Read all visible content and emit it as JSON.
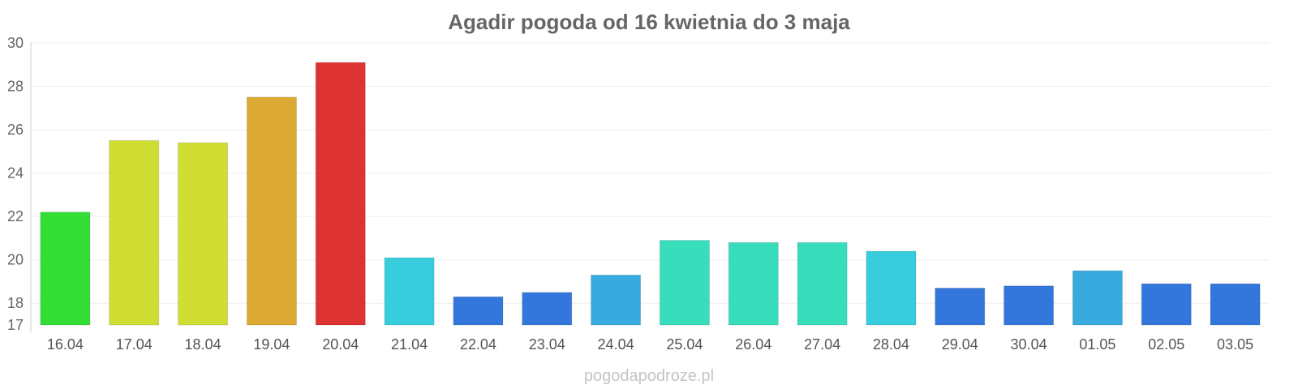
{
  "chart_data": {
    "type": "bar",
    "title": "Agadir pogoda od 16 kwietnia do 3 maja",
    "xlabel": "",
    "ylabel": "",
    "ylim": [
      17,
      30
    ],
    "yticks": [
      17,
      18,
      20,
      22,
      24,
      26,
      28,
      30
    ],
    "categories": [
      "16.04",
      "17.04",
      "18.04",
      "19.04",
      "20.04",
      "21.04",
      "22.04",
      "23.04",
      "24.04",
      "25.04",
      "26.04",
      "27.04",
      "28.04",
      "29.04",
      "30.04",
      "01.05",
      "02.05",
      "03.05"
    ],
    "values": [
      22.2,
      25.5,
      25.4,
      27.5,
      29.1,
      20.1,
      18.3,
      18.5,
      19.3,
      20.9,
      20.8,
      20.8,
      20.4,
      18.7,
      18.8,
      19.5,
      18.9,
      18.9
    ],
    "colors": [
      "#33dd33",
      "#d0dd33",
      "#d0dd33",
      "#dcaa33",
      "#dd3333",
      "#38cddd",
      "#3377dd",
      "#3377dd",
      "#38aadd",
      "#38ddbb",
      "#38ddbb",
      "#38ddbb",
      "#38cddd",
      "#3377dd",
      "#3377dd",
      "#38aadd",
      "#3377dd",
      "#3377dd"
    ],
    "grid": true,
    "legend": "none"
  },
  "watermark": "pogodapodroze.pl"
}
